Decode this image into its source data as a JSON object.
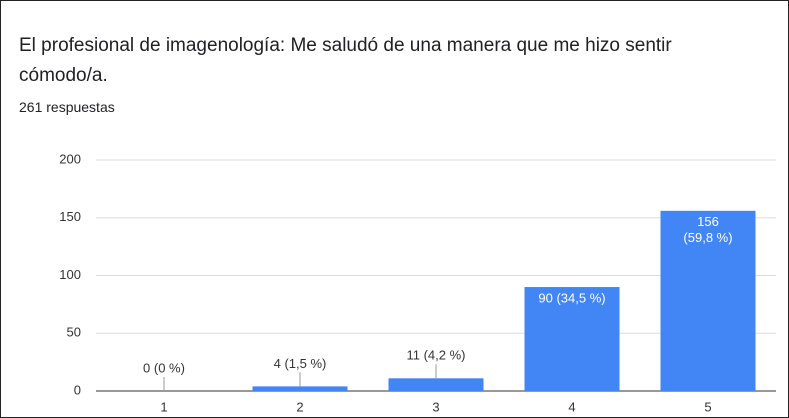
{
  "chart_data": {
    "type": "bar",
    "title": "El profesional de imagenología: Me saludó de una manera que me hizo sentir cómodo/a.",
    "subtitle": "261 respuestas",
    "categories": [
      "1",
      "2",
      "3",
      "4",
      "5"
    ],
    "values": [
      0,
      4,
      11,
      90,
      156
    ],
    "value_labels": [
      "0 (0 %)",
      "4 (1,5 %)",
      "11 (4,2 %)",
      "90 (34,5 %)",
      "156 (59,8 %)"
    ],
    "color": "#4285f4",
    "ylim": [
      0,
      200
    ],
    "yticks": [
      0,
      50,
      100,
      150,
      200
    ],
    "grid": true
  }
}
